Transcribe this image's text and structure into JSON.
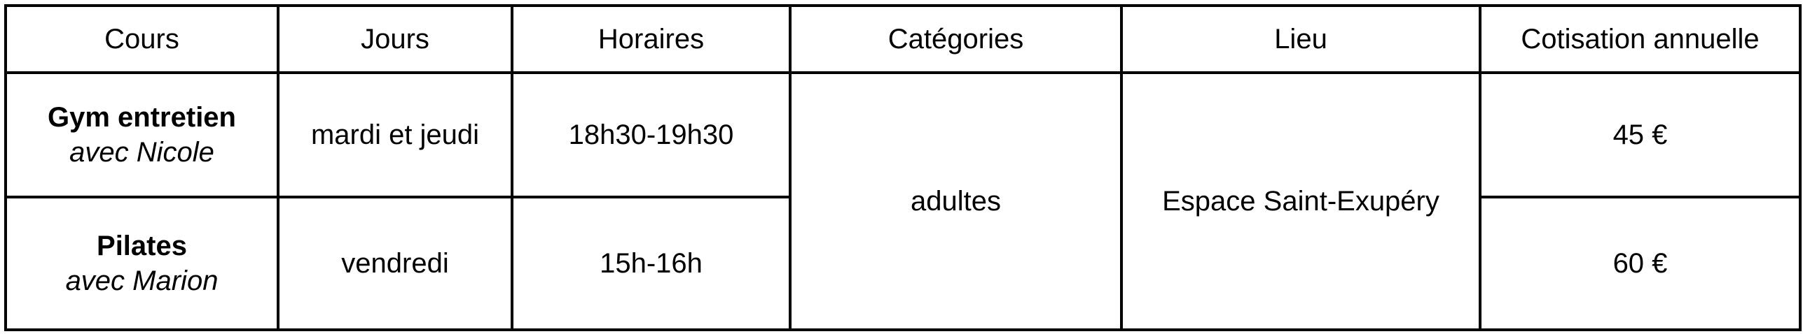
{
  "table": {
    "headers": [
      "Cours",
      "Jours",
      "Horaires",
      "Catégories",
      "Lieu",
      "Cotisation annuelle"
    ],
    "rows": [
      {
        "cours": "Gym entretien",
        "instructor": "avec Nicole",
        "jours": "mardi et jeudi",
        "horaires": "18h30-19h30",
        "cotisation": "45 €"
      },
      {
        "cours": "Pilates",
        "instructor": "avec Marion",
        "jours": "vendredi",
        "horaires": "15h-16h",
        "cotisation": "60 €"
      }
    ],
    "categories": "adultes",
    "lieu": "Espace Saint-Exupéry"
  }
}
